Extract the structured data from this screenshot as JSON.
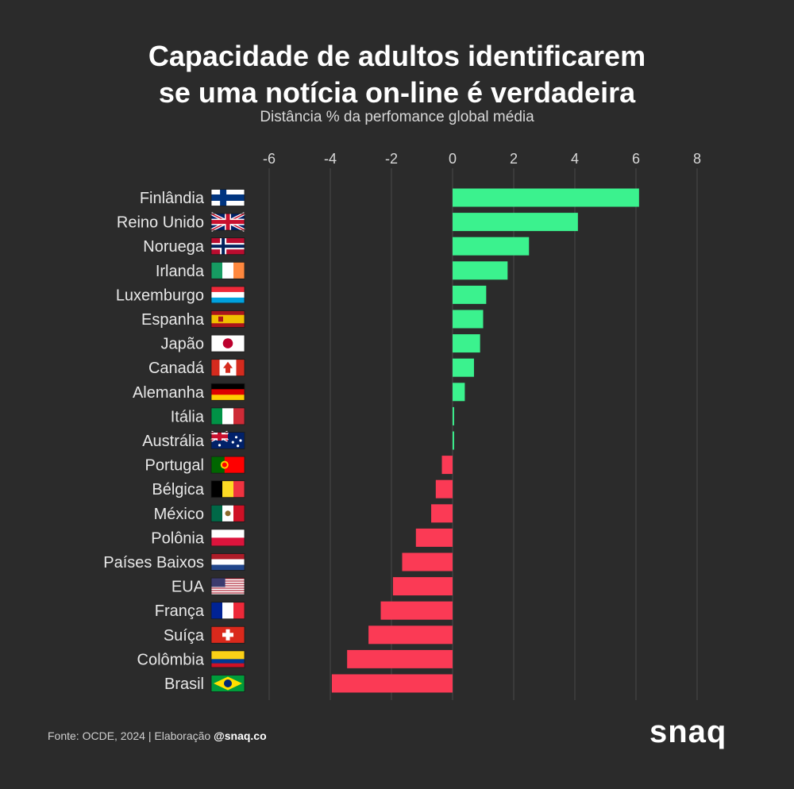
{
  "header": {
    "title_line1": "Capacidade de adultos identificarem",
    "title_line2": "se uma notícia on-line é verdadeira",
    "subtitle": "Distância % da perfomance global média"
  },
  "footer": {
    "source": "Fonte: OCDE, 2024 | Elaboração ",
    "handle": "@snaq.co"
  },
  "brand": {
    "logo": "snaq"
  },
  "colors": {
    "background": "#2b2b2b",
    "positive": "#3bf28e",
    "negative": "#fb3a55",
    "grid": "#4a4a4a"
  },
  "chart_data": {
    "type": "bar",
    "orientation": "horizontal",
    "title": "Capacidade de adultos identificarem se uma notícia on-line é verdadeira",
    "subtitle": "Distância % da perfomance global média",
    "xlim": [
      -6,
      8
    ],
    "xticks": [
      -6,
      -4,
      -2,
      0,
      2,
      4,
      6,
      8
    ],
    "xtick_labels": [
      "-6",
      "-4",
      "-2",
      "0",
      "2",
      "4",
      "6",
      "8"
    ],
    "grid": true,
    "categories": [
      "Finlândia",
      "Reino Unido",
      "Noruega",
      "Irlanda",
      "Luxemburgo",
      "Espanha",
      "Japão",
      "Canadá",
      "Alemanha",
      "Itália",
      "Austrália",
      "Portugal",
      "Bélgica",
      "México",
      "Polônia",
      "Países Baixos",
      "EUA",
      "França",
      "Suíça",
      "Colômbia",
      "Brasil"
    ],
    "values": [
      6.1,
      4.1,
      2.5,
      1.8,
      1.1,
      1.0,
      0.9,
      0.7,
      0.4,
      0.05,
      0.05,
      -0.35,
      -0.55,
      -0.7,
      -1.2,
      -1.65,
      -1.95,
      -2.35,
      -2.75,
      -3.45,
      -3.95
    ],
    "flags": [
      "finland-flag",
      "uk-flag",
      "norway-flag",
      "ireland-flag",
      "luxembourg-flag",
      "spain-flag",
      "japan-flag",
      "canada-flag",
      "germany-flag",
      "italy-flag",
      "australia-flag",
      "portugal-flag",
      "belgium-flag",
      "mexico-flag",
      "poland-flag",
      "netherlands-flag",
      "usa-flag",
      "france-flag",
      "switzerland-flag",
      "colombia-flag",
      "brazil-flag"
    ]
  }
}
